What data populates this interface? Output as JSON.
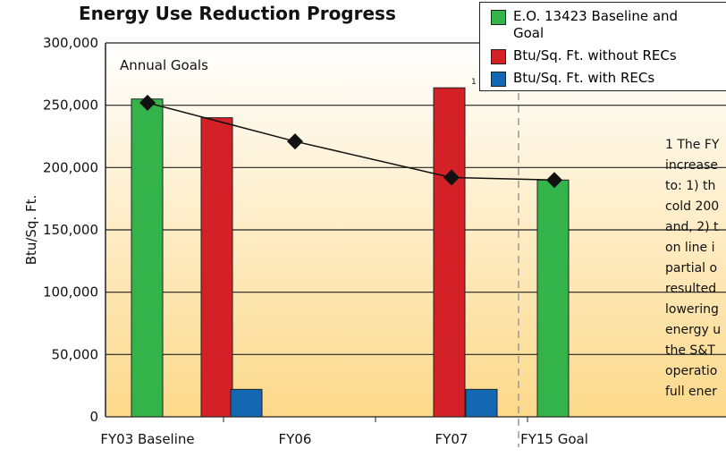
{
  "chart_data": {
    "type": "bar",
    "title": "Energy Use Reduction Progress",
    "y_label": "Btu/Sq. Ft.",
    "categories": [
      "FY03 Baseline",
      "FY06",
      "FY07",
      "FY15 Goal"
    ],
    "series": [
      {
        "name": "E.O. 13423 Baseline and Goal",
        "color": "#33b34a",
        "values": [
          255000,
          null,
          null,
          190000
        ]
      },
      {
        "name": "Btu/Sq. Ft. without RECs",
        "color": "#d42027",
        "values": [
          null,
          240000,
          264000,
          null
        ]
      },
      {
        "name": "Btu/Sq. Ft. with RECs",
        "color": "#1467b3",
        "values": [
          null,
          22000,
          22000,
          null
        ]
      }
    ],
    "goal_line": {
      "label": "Annual Goals",
      "values": [
        252000,
        221000,
        192000,
        190000
      ]
    },
    "footnote_marker": "1",
    "footnote_lines": [
      "1 The FY",
      "increase",
      "to: 1) th",
      "cold 200",
      "and, 2) t",
      "on line i",
      "partial o",
      "resulted",
      "lowering",
      "energy u",
      "the S&T",
      "operatio",
      "full ener"
    ],
    "ylim": [
      0,
      300000
    ],
    "yticks": [
      {
        "value": 0,
        "label": "0"
      },
      {
        "value": 50000,
        "label": "50,000"
      },
      {
        "value": 100000,
        "label": "100,000"
      },
      {
        "value": 150000,
        "label": "150,000"
      },
      {
        "value": 200000,
        "label": "200,000"
      },
      {
        "value": 250000,
        "label": "250,000"
      },
      {
        "value": 300000,
        "label": "300,000"
      }
    ],
    "grid": true
  }
}
